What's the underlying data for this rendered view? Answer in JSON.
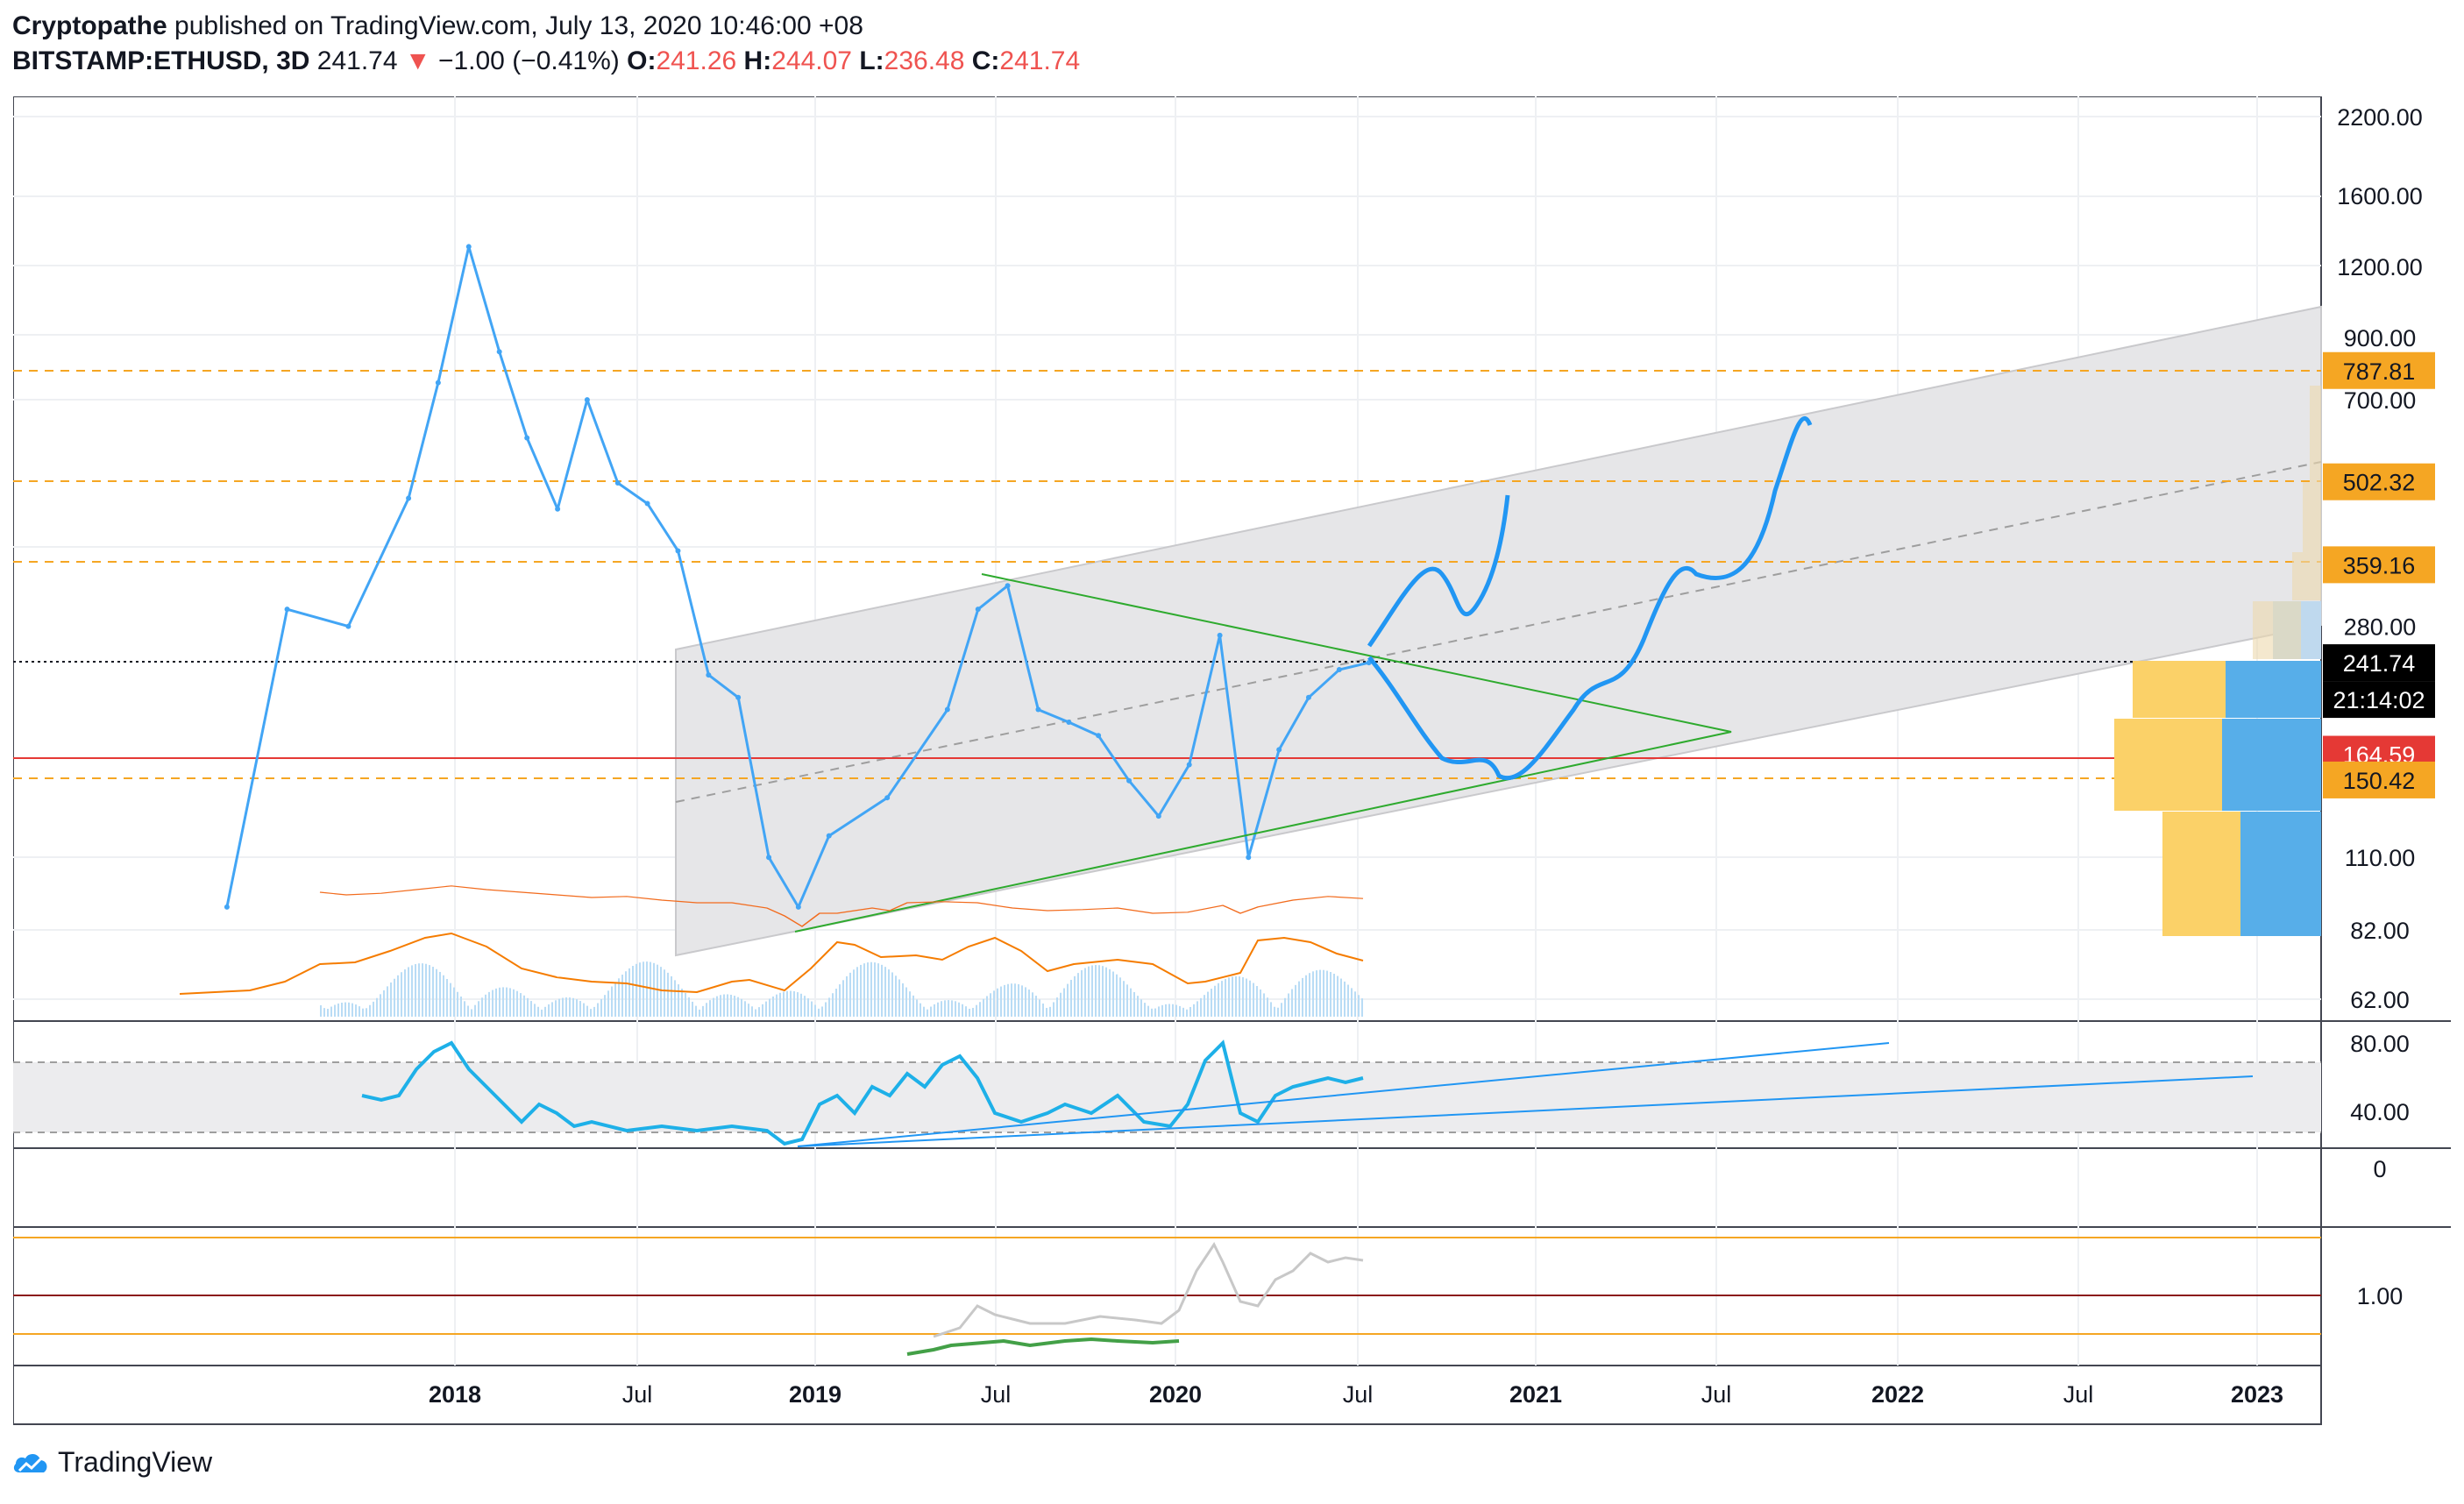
{
  "header": {
    "author": "Cryptopathe",
    "published": "published on TradingView.com, July 13, 2020 10:46:00 +08",
    "symbol": "BITSTAMP:ETHUSD, 3D",
    "last": "241.74",
    "arrow": "▼",
    "change": "−1.00 (−0.41%)",
    "o_label": "O:",
    "o_val": "241.26",
    "h_label": "H:",
    "h_val": "244.07",
    "l_label": "L:",
    "l_val": "236.48",
    "c_label": "C:",
    "c_val": "241.74"
  },
  "branding": {
    "name": "TradingView"
  },
  "colors": {
    "price": "#42a5f5",
    "ema": "#f57c00",
    "rsi": "#1eb0e8",
    "osc": "#f26b1d",
    "fib": "#f5a623",
    "support_red": "#e53935",
    "triangle": "#2eaa2e",
    "channel_fill": "#e6e6e8",
    "vp_up": "#fbd168",
    "vp_down": "#57aee9"
  },
  "chart_data": {
    "type": "line",
    "title": "",
    "x_axis": {
      "ticks": [
        "2018",
        "Jul",
        "2019",
        "Jul",
        "2020",
        "Jul",
        "2021",
        "Jul",
        "2022",
        "Jul",
        "2023"
      ]
    },
    "y_axis": {
      "scale": "log",
      "ticks": [
        "2200.00",
        "1600.00",
        "1200.00",
        "900.00",
        "700.00",
        "280.00",
        "110.00",
        "82.00",
        "62.00"
      ]
    },
    "price_series": {
      "name": "ETHUSD",
      "x": [
        "2017-05",
        "2017-07",
        "2017-09",
        "2017-11",
        "2017-12",
        "2018-01",
        "2018-02",
        "2018-03",
        "2018-04",
        "2018-05",
        "2018-06",
        "2018-07",
        "2018-08",
        "2018-09",
        "2018-10",
        "2018-11",
        "2018-12",
        "2019-01",
        "2019-03",
        "2019-05",
        "2019-06",
        "2019-07",
        "2019-08",
        "2019-09",
        "2019-10",
        "2019-11",
        "2019-12",
        "2020-01",
        "2020-02",
        "2020-03",
        "2020-04",
        "2020-05",
        "2020-06",
        "2020-07"
      ],
      "y": [
        90,
        300,
        280,
        470,
        750,
        1300,
        850,
        600,
        450,
        700,
        500,
        460,
        380,
        230,
        210,
        110,
        90,
        120,
        140,
        200,
        300,
        330,
        200,
        190,
        180,
        150,
        130,
        160,
        270,
        110,
        170,
        210,
        235,
        241.74
      ]
    },
    "price_labels": [
      {
        "value": "787.81",
        "kind": "fib"
      },
      {
        "value": "502.32",
        "kind": "fib"
      },
      {
        "value": "359.16",
        "kind": "fib"
      },
      {
        "value": "241.74",
        "kind": "last"
      },
      {
        "value": "21:14:02",
        "kind": "countdown"
      },
      {
        "value": "164.59",
        "kind": "support"
      },
      {
        "value": "150.42",
        "kind": "fib"
      }
    ],
    "horizontal_levels": [
      787.81,
      502.32,
      359.16,
      241.74,
      164.59,
      150.42
    ],
    "rsi": {
      "ticks": [
        "80.00",
        "40.00"
      ],
      "band": [
        30,
        70
      ]
    },
    "oscillator": {
      "ticks": [
        "0"
      ]
    },
    "bottom_indicator": {
      "ticks": [
        "1.00"
      ]
    }
  }
}
